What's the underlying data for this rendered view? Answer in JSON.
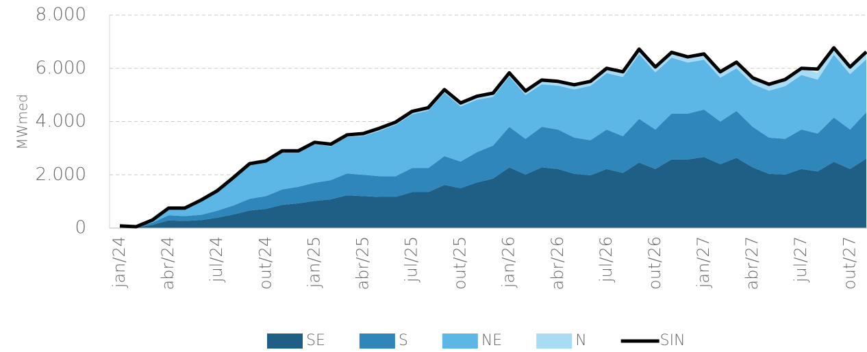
{
  "chart_data": {
    "type": "area",
    "stacked": true,
    "y_label": "MWmed",
    "categories": [
      "jan/24",
      null,
      null,
      "abr/24",
      null,
      null,
      "jul/24",
      null,
      null,
      "out/24",
      null,
      null,
      "jan/25",
      null,
      null,
      "abr/25",
      null,
      null,
      "jul/25",
      null,
      null,
      "out/25",
      null,
      null,
      "jan/26",
      null,
      null,
      "abr/26",
      null,
      null,
      "jul/26",
      null,
      null,
      "out/26",
      null,
      null,
      "jan/27",
      null,
      null,
      "abr/27",
      null,
      null,
      "jul/27",
      null,
      null,
      "out/27",
      null
    ],
    "ylim": [
      0,
      8000
    ],
    "yticks": [
      0,
      {
        "value": 2000,
        "label": "2.000"
      },
      {
        "value": 4000,
        "label": "4.000"
      },
      {
        "value": 6000,
        "label": "6.000"
      },
      {
        "value": 8000,
        "label": "8.000"
      }
    ],
    "grid": true,
    "legend": "bottom",
    "series": [
      {
        "name": "SE",
        "type": "area",
        "color": "#1f5f86",
        "values": [
          30,
          20,
          120,
          290,
          270,
          300,
          390,
          510,
          660,
          720,
          870,
          930,
          1020,
          1080,
          1230,
          1200,
          1170,
          1170,
          1350,
          1350,
          1620,
          1500,
          1710,
          1860,
          2280,
          2010,
          2280,
          2220,
          2040,
          1980,
          2220,
          2070,
          2460,
          2220,
          2580,
          2580,
          2670,
          2400,
          2640,
          2280,
          2040,
          2010,
          2220,
          2130,
          2490,
          2220,
          2610
        ]
      },
      {
        "name": "S",
        "type": "area",
        "color": "#2f86ba",
        "values": [
          20,
          20,
          80,
          190,
          180,
          200,
          260,
          340,
          440,
          480,
          580,
          620,
          680,
          720,
          820,
          800,
          780,
          780,
          900,
          900,
          1080,
          1000,
          1140,
          1240,
          1520,
          1340,
          1520,
          1480,
          1360,
          1320,
          1480,
          1380,
          1640,
          1480,
          1720,
          1720,
          1780,
          1600,
          1760,
          1520,
          1360,
          1340,
          1480,
          1420,
          1660,
          1480,
          1740
        ]
      },
      {
        "name": "NE",
        "type": "area",
        "color": "#5cb6e6",
        "values": [
          30,
          0,
          90,
          250,
          280,
          520,
          710,
          1010,
          1270,
          1270,
          1390,
          1280,
          1450,
          1270,
          1370,
          1460,
          1700,
          1930,
          2020,
          2160,
          2380,
          2070,
          1970,
          1830,
          1890,
          1650,
          1600,
          1650,
          1810,
          2040,
          2120,
          2230,
          2430,
          2150,
          2100,
          1920,
          1870,
          1650,
          1600,
          1610,
          1760,
          1980,
          2050,
          2030,
          2360,
          2080,
          1990
        ]
      },
      {
        "name": "N",
        "type": "area",
        "color": "#a8dcf5",
        "values": [
          0,
          10,
          10,
          20,
          20,
          30,
          40,
          40,
          50,
          50,
          60,
          70,
          70,
          80,
          80,
          90,
          100,
          100,
          110,
          110,
          120,
          130,
          130,
          140,
          140,
          150,
          160,
          160,
          170,
          170,
          180,
          190,
          190,
          200,
          200,
          210,
          220,
          220,
          230,
          230,
          240,
          250,
          250,
          260,
          260,
          270,
          280
        ]
      },
      {
        "name": "SIN",
        "type": "line",
        "color": "#000000",
        "values": [
          80,
          50,
          300,
          750,
          750,
          1050,
          1400,
          1900,
          2420,
          2520,
          2900,
          2900,
          3220,
          3150,
          3500,
          3550,
          3750,
          3980,
          4380,
          4520,
          5200,
          4700,
          4950,
          5070,
          5830,
          5150,
          5560,
          5510,
          5380,
          5510,
          6000,
          5870,
          6720,
          6050,
          6600,
          6430,
          6540,
          5870,
          6230,
          5640,
          5400,
          5580,
          6000,
          5970,
          6770,
          6050,
          6620
        ]
      }
    ]
  }
}
